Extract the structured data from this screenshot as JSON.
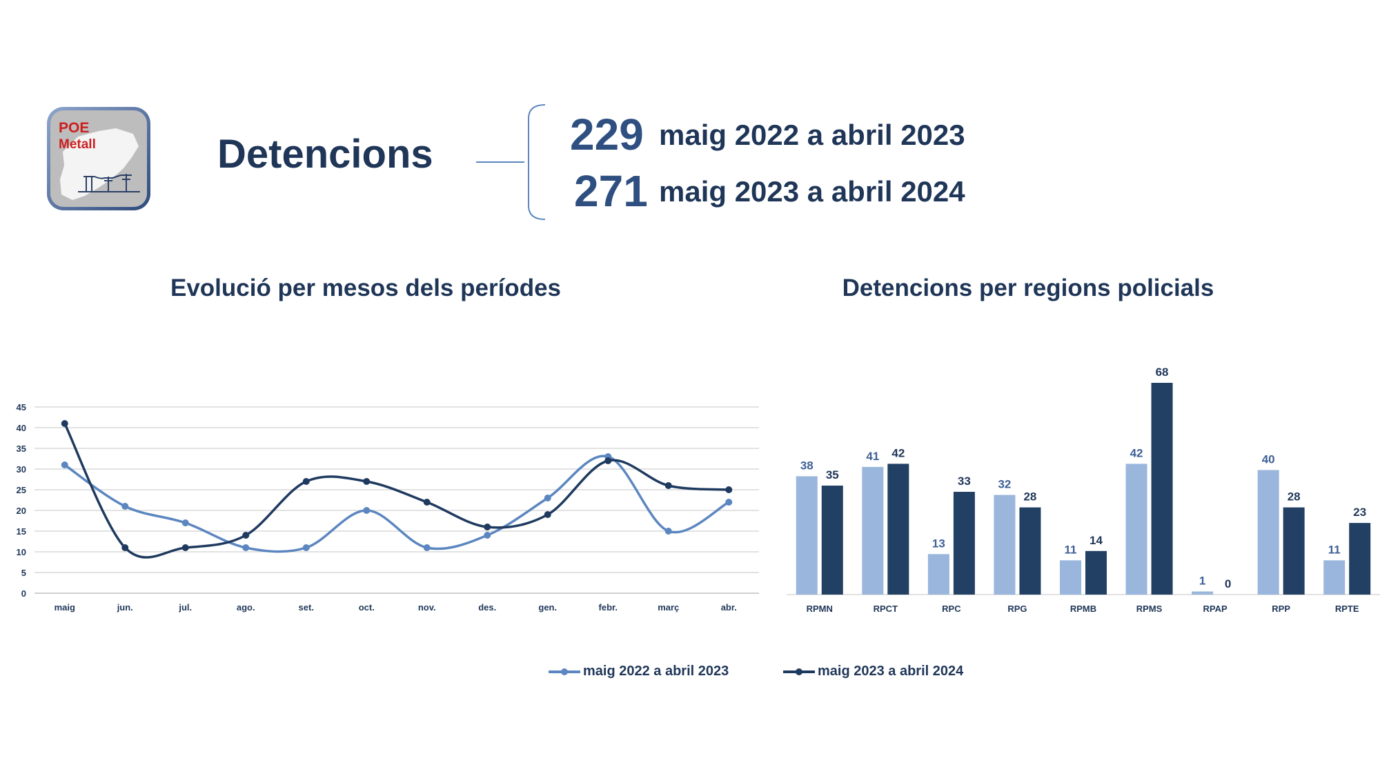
{
  "logo": {
    "line1": "POE",
    "line2": "Metall"
  },
  "header": {
    "title": "Detencions",
    "periods": [
      {
        "total": "229",
        "label": "maig 2022 a abril 2023"
      },
      {
        "total": "271",
        "label": "maig 2023 a abril 2024"
      }
    ]
  },
  "line_title": "Evolució per mesos dels períodes",
  "bar_title": "Detencions per regions policials",
  "colors": {
    "series1": "#5b86c0",
    "series2": "#1f3a5f",
    "bar1": "#9ab6dc",
    "bar2": "#223f64",
    "text": "#1f3658"
  },
  "legend": [
    {
      "label": "maig 2022 a abril 2023",
      "color": "#5b86c0"
    },
    {
      "label": "maig 2023 a abril 2024",
      "color": "#1f3a5f"
    }
  ],
  "chart_data": [
    {
      "type": "line",
      "title": "Evolució per mesos dels períodes",
      "categories": [
        "maig",
        "jun.",
        "jul.",
        "ago.",
        "set.",
        "oct.",
        "nov.",
        "des.",
        "gen.",
        "febr.",
        "març",
        "abr."
      ],
      "series": [
        {
          "name": "maig 2022 a abril 2023",
          "values": [
            31,
            21,
            17,
            11,
            11,
            20,
            11,
            14,
            23,
            33,
            15,
            22
          ]
        },
        {
          "name": "maig 2023 a abril 2024",
          "values": [
            41,
            11,
            11,
            14,
            27,
            27,
            22,
            16,
            19,
            32,
            26,
            25
          ]
        }
      ],
      "ylim": [
        0,
        45
      ],
      "yticks": [
        0,
        5,
        10,
        15,
        20,
        25,
        30,
        35,
        40,
        45
      ],
      "grid": true,
      "smooth": true
    },
    {
      "type": "bar",
      "title": "Detencions per regions policials",
      "categories": [
        "RPMN",
        "RPCT",
        "RPC",
        "RPG",
        "RPMB",
        "RPMS",
        "RPAP",
        "RPP",
        "RPTE"
      ],
      "series": [
        {
          "name": "maig 2022 a abril 2023",
          "values": [
            38,
            41,
            13,
            32,
            11,
            42,
            1,
            40,
            11
          ]
        },
        {
          "name": "maig 2023 a abril 2024",
          "values": [
            35,
            42,
            33,
            28,
            14,
            68,
            0,
            28,
            23
          ]
        }
      ],
      "ylim": [
        0,
        68
      ],
      "data_labels": true
    }
  ]
}
